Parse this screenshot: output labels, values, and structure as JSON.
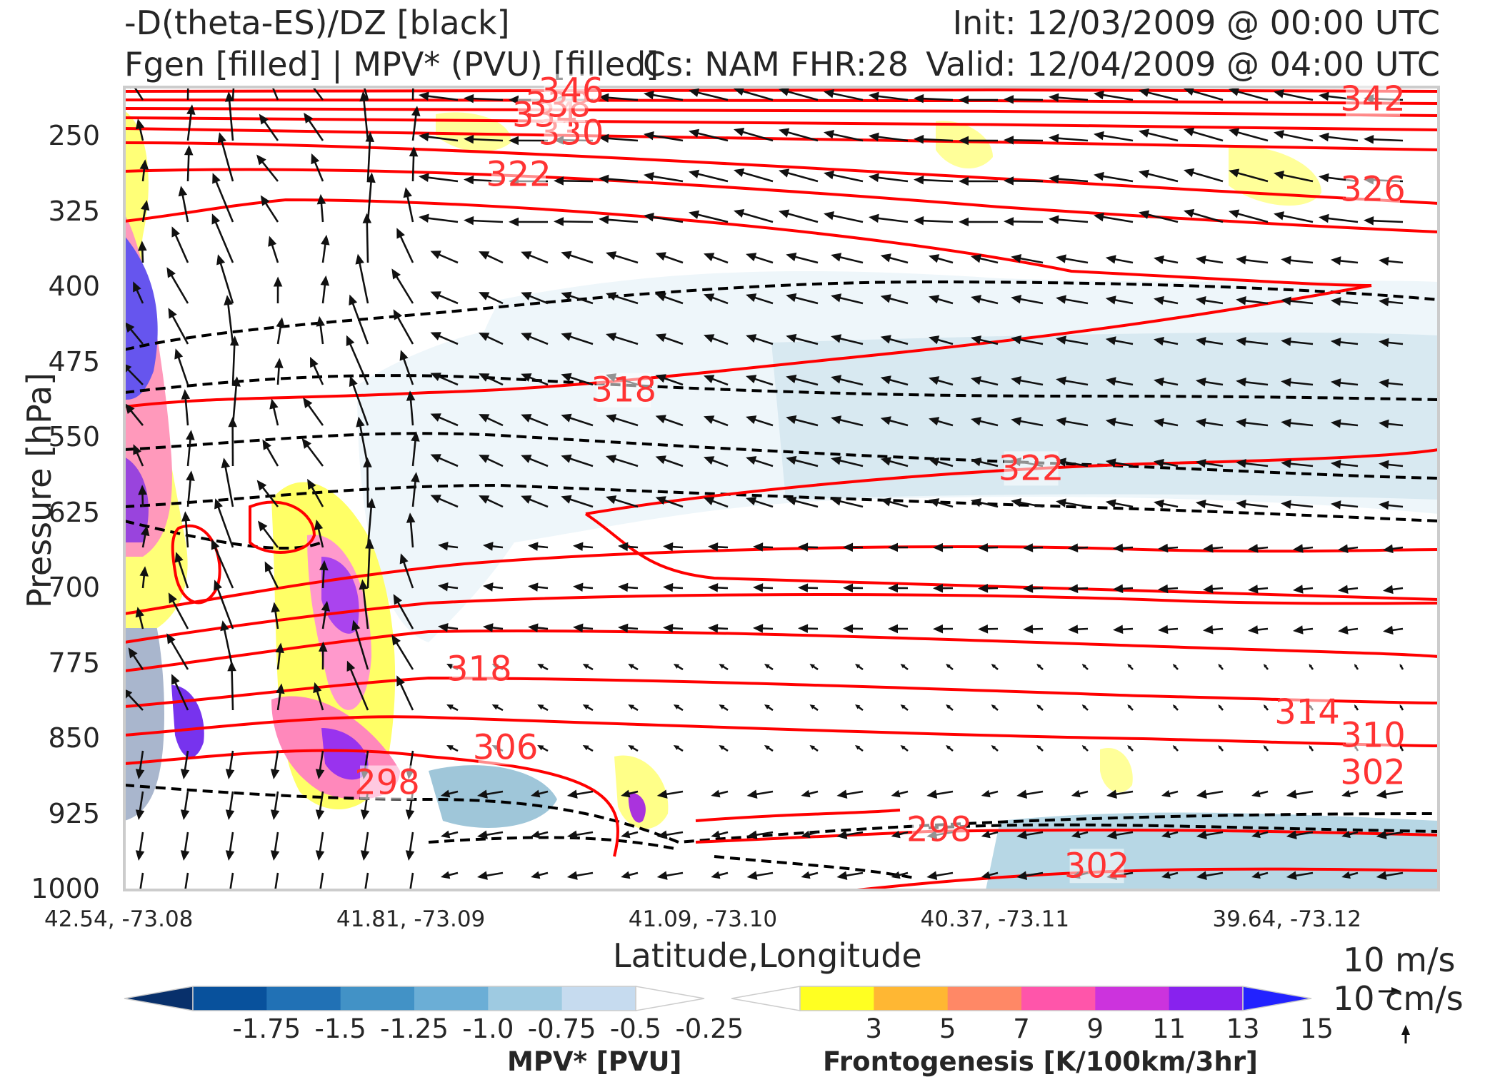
{
  "title": {
    "left_line1": "-D(theta-ES)/DZ [black]",
    "left_line2": "Fgen [filled] | MPV* (PVU) [filled]",
    "center": "Cs: NAM FHR:28",
    "right_line1": "Init: 12/03/2009 @ 00:00 UTC",
    "right_line2": "Valid: 12/04/2009 @ 04:00 UTC"
  },
  "chart_data": {
    "type": "cross-section",
    "xlabel": "Latitude,Longitude",
    "ylabel": "Pressure [hPa]",
    "x_ticks": [
      "42.54, -73.08",
      "41.81, -73.09",
      "41.09, -73.10",
      "40.37, -73.11",
      "39.64, -73.12"
    ],
    "y_ticks": [
      250,
      325,
      400,
      475,
      550,
      625,
      700,
      775,
      850,
      925,
      1000
    ],
    "ylim": [
      1000,
      200
    ],
    "theta_e_contour_labels": [
      {
        "text": "342",
        "pos": 0.95,
        "p": 212
      },
      {
        "text": "326",
        "pos": 0.95,
        "p": 302
      },
      {
        "text": "322",
        "pos": 0.3,
        "p": 287
      },
      {
        "text": "330",
        "pos": 0.34,
        "p": 246
      },
      {
        "text": "334",
        "pos": 0.32,
        "p": 228
      },
      {
        "text": "338",
        "pos": 0.33,
        "p": 218
      },
      {
        "text": "346",
        "pos": 0.34,
        "p": 204
      },
      {
        "text": "318",
        "pos": 0.38,
        "p": 502
      },
      {
        "text": "322",
        "pos": 0.69,
        "p": 580
      },
      {
        "text": "318",
        "pos": 0.27,
        "p": 780
      },
      {
        "text": "306",
        "pos": 0.29,
        "p": 858
      },
      {
        "text": "298",
        "pos": 0.2,
        "p": 893
      },
      {
        "text": "314",
        "pos": 0.9,
        "p": 823
      },
      {
        "text": "310",
        "pos": 0.95,
        "p": 846
      },
      {
        "text": "302",
        "pos": 0.95,
        "p": 883
      },
      {
        "text": "298",
        "pos": 0.62,
        "p": 940
      },
      {
        "text": "302",
        "pos": 0.74,
        "p": 976
      }
    ],
    "mpv_colorbar": {
      "title": "MPV* [PVU]",
      "ticks": [
        "-1.75",
        "-1.5",
        "-1.25",
        "-1.0",
        "-0.75",
        "-0.5",
        "-0.25"
      ],
      "colors": [
        "#08306b",
        "#08519c",
        "#2171b5",
        "#4292c6",
        "#6baed6",
        "#9ecae1",
        "#c6dbef",
        "#ffffff"
      ]
    },
    "fgen_colorbar": {
      "title": "Frontogenesis [K/100km/3hr]",
      "ticks": [
        "3",
        "5",
        "7",
        "9",
        "11",
        "13",
        "15"
      ],
      "colors": [
        "#ffffff",
        "#ffff22",
        "#ffb733",
        "#ff8866",
        "#ff55aa",
        "#cc33dd",
        "#8822ee",
        "#2222ff"
      ]
    },
    "wind_key": {
      "u_label": "10 m/s",
      "w_label": "10 cm/s"
    },
    "colors": {
      "theta_e_contour": "#ff0000",
      "dtheta_contour": "#000000",
      "vectors": "#111111",
      "frame": "#cccccc"
    }
  }
}
